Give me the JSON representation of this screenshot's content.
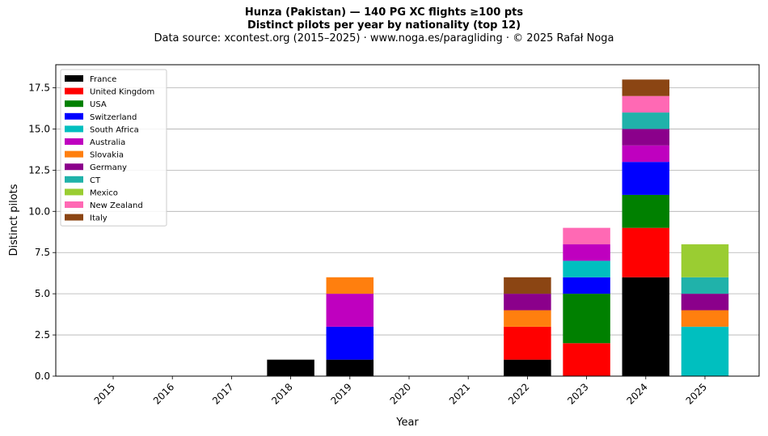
{
  "chart_data": {
    "type": "bar",
    "stacked": true,
    "title": "Hunza (Pakistan)  —  140 PG XC flights ≥100 pts",
    "subtitle": "Distinct pilots per year by nationality (top 12)",
    "source": "Data source: xcontest.org (2015–2025)  ·  www.noga.es/paragliding  ·  © 2025 Rafał Noga",
    "xlabel": "Year",
    "ylabel": "Distinct pilots",
    "ylim": [
      0,
      18.9
    ],
    "yticks": [
      0,
      2.5,
      5,
      7.5,
      10,
      12.5,
      15,
      17.5
    ],
    "ytick_labels": [
      "0.0",
      "2.5",
      "5.0",
      "7.5",
      "10.0",
      "12.5",
      "15.0",
      "17.5"
    ],
    "grid": "horizontal",
    "legend_position": "top-left",
    "categories": [
      "2015",
      "2016",
      "2017",
      "2018",
      "2019",
      "2020",
      "2021",
      "2022",
      "2023",
      "2024",
      "2025"
    ],
    "series": [
      {
        "name": "France",
        "color": "#000000",
        "values": [
          0,
          0,
          0,
          1,
          1,
          0,
          0,
          1,
          0,
          6,
          0
        ]
      },
      {
        "name": "United Kingdom",
        "color": "#ff0000",
        "values": [
          0,
          0,
          0,
          0,
          0,
          0,
          0,
          2,
          2,
          3,
          0
        ]
      },
      {
        "name": "USA",
        "color": "#008000",
        "values": [
          0,
          0,
          0,
          0,
          0,
          0,
          0,
          0,
          3,
          2,
          0
        ]
      },
      {
        "name": "Switzerland",
        "color": "#0000ff",
        "values": [
          0,
          0,
          0,
          0,
          2,
          0,
          0,
          0,
          1,
          2,
          0
        ]
      },
      {
        "name": "South Africa",
        "color": "#00bfbf",
        "values": [
          0,
          0,
          0,
          0,
          0,
          0,
          0,
          0,
          1,
          0,
          3
        ]
      },
      {
        "name": "Australia",
        "color": "#bf00bf",
        "values": [
          0,
          0,
          0,
          0,
          2,
          0,
          0,
          0,
          1,
          1,
          0
        ]
      },
      {
        "name": "Slovakia",
        "color": "#ff7f0e",
        "values": [
          0,
          0,
          0,
          0,
          1,
          0,
          0,
          1,
          0,
          0,
          1
        ]
      },
      {
        "name": "Germany",
        "color": "#8b008b",
        "values": [
          0,
          0,
          0,
          0,
          0,
          0,
          0,
          1,
          0,
          1,
          1
        ]
      },
      {
        "name": "CT",
        "color": "#20b2aa",
        "values": [
          0,
          0,
          0,
          0,
          0,
          0,
          0,
          0,
          0,
          1,
          1
        ]
      },
      {
        "name": "Mexico",
        "color": "#9acd32",
        "values": [
          0,
          0,
          0,
          0,
          0,
          0,
          0,
          0,
          0,
          0,
          2
        ]
      },
      {
        "name": "New Zealand",
        "color": "#ff69b4",
        "values": [
          0,
          0,
          0,
          0,
          0,
          0,
          0,
          0,
          1,
          1,
          0
        ]
      },
      {
        "name": "Italy",
        "color": "#8b4513",
        "values": [
          0,
          0,
          0,
          0,
          0,
          0,
          0,
          1,
          0,
          1,
          0
        ]
      }
    ]
  }
}
